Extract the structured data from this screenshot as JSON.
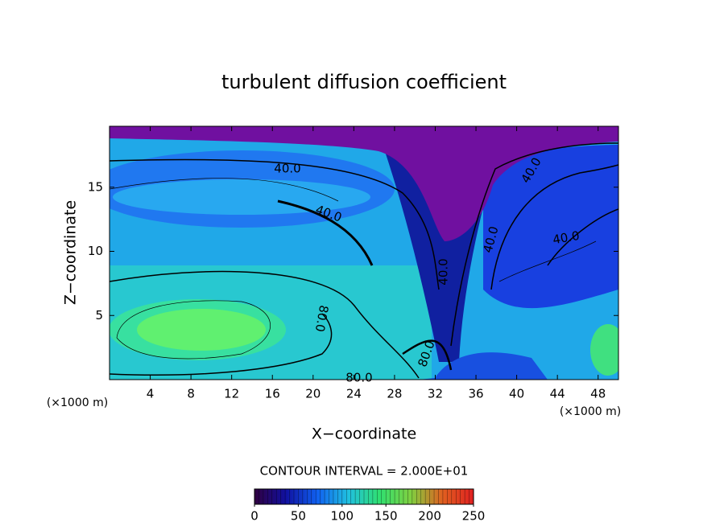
{
  "chart_data": {
    "type": "contour",
    "title": "turbulent diffusion coefficient",
    "x_label": "X−coordinate",
    "y_label": "Z−coordinate",
    "unit_labels": [
      "(×1000 m)",
      "(×1000 m)"
    ],
    "xlim": [
      0,
      50
    ],
    "xticks": [
      4,
      8,
      12,
      16,
      20,
      24,
      28,
      32,
      36,
      40,
      44,
      48
    ],
    "ylim": [
      0,
      19.75
    ],
    "yticks": [
      5,
      10,
      15
    ],
    "contour_interval_text": "CONTOUR INTERVAL = 2.000E+01",
    "contour_labels": [
      "40.0",
      "40.0",
      "40.0",
      "40.0",
      "40.0",
      "40.0",
      "80.0",
      "80.0",
      "80.0"
    ],
    "colorbar": {
      "lim": [
        0,
        250
      ],
      "ticks": [
        0,
        50,
        100,
        150,
        200,
        250
      ],
      "colors": [
        "#300040",
        "#1010a0",
        "#1060f0",
        "#20c0e0",
        "#30e070",
        "#80d040",
        "#e06020",
        "#e02020"
      ]
    }
  }
}
